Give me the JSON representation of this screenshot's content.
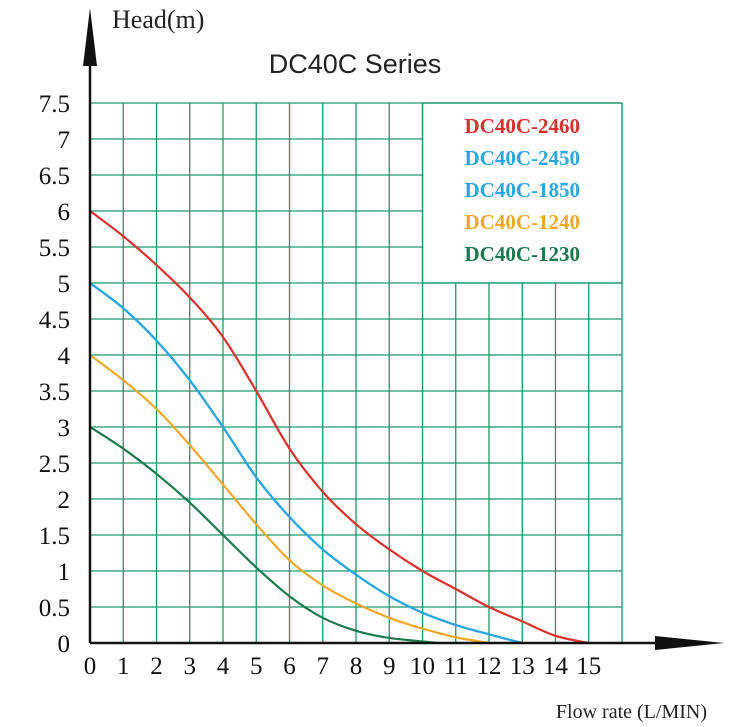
{
  "chart_data": {
    "type": "line",
    "title": "DC40C Series",
    "ylabel": "Head(m)",
    "xlabel": "Flow rate (L/MIN)",
    "xlim": [
      0,
      16
    ],
    "ylim": [
      0,
      7.5
    ],
    "x_ticks": [
      "0",
      "1",
      "2",
      "3",
      "4",
      "5",
      "6",
      "7",
      "8",
      "9",
      "10",
      "11",
      "12",
      "13",
      "14",
      "15"
    ],
    "y_ticks": [
      "0",
      "0.5",
      "1",
      "1.5",
      "2",
      "2.5",
      "3",
      "3.5",
      "4",
      "4.5",
      "5",
      "5.5",
      "6",
      "6.5",
      "7",
      "7.5"
    ],
    "grid": true,
    "legend_position": "top-right",
    "series": [
      {
        "name": "DC40C-2460",
        "color": "#d9312c",
        "points": [
          [
            0,
            6.0
          ],
          [
            1,
            5.65
          ],
          [
            2,
            5.25
          ],
          [
            3,
            4.8
          ],
          [
            4,
            4.25
          ],
          [
            5,
            3.5
          ],
          [
            6,
            2.7
          ],
          [
            7,
            2.1
          ],
          [
            8,
            1.65
          ],
          [
            9,
            1.3
          ],
          [
            10,
            1.0
          ],
          [
            11,
            0.75
          ],
          [
            12,
            0.5
          ],
          [
            13,
            0.3
          ],
          [
            14,
            0.1
          ],
          [
            15,
            0.0
          ]
        ]
      },
      {
        "name": "DC40C-2450",
        "color": "#2aa6e0",
        "points": [
          [
            0,
            5.0
          ],
          [
            1,
            4.65
          ],
          [
            2,
            4.2
          ],
          [
            3,
            3.65
          ],
          [
            4,
            3.0
          ],
          [
            5,
            2.3
          ],
          [
            6,
            1.75
          ],
          [
            7,
            1.3
          ],
          [
            8,
            0.95
          ],
          [
            9,
            0.65
          ],
          [
            10,
            0.42
          ],
          [
            11,
            0.25
          ],
          [
            12,
            0.12
          ],
          [
            13,
            0.0
          ]
        ]
      },
      {
        "name": "DC40C-1850",
        "color": "#2aa6e0",
        "points": [
          [
            0,
            5.0
          ],
          [
            1,
            4.65
          ],
          [
            2,
            4.2
          ],
          [
            3,
            3.65
          ],
          [
            4,
            3.0
          ],
          [
            5,
            2.3
          ],
          [
            6,
            1.75
          ],
          [
            7,
            1.3
          ],
          [
            8,
            0.95
          ],
          [
            9,
            0.65
          ],
          [
            10,
            0.42
          ],
          [
            11,
            0.25
          ],
          [
            12,
            0.12
          ],
          [
            13,
            0.0
          ]
        ]
      },
      {
        "name": "DC40C-1240",
        "color": "#f0a829",
        "points": [
          [
            0,
            4.0
          ],
          [
            1,
            3.65
          ],
          [
            2,
            3.25
          ],
          [
            3,
            2.75
          ],
          [
            4,
            2.2
          ],
          [
            5,
            1.65
          ],
          [
            6,
            1.15
          ],
          [
            7,
            0.8
          ],
          [
            8,
            0.55
          ],
          [
            9,
            0.35
          ],
          [
            10,
            0.2
          ],
          [
            11,
            0.08
          ],
          [
            12,
            0.0
          ]
        ]
      },
      {
        "name": "DC40C-1230",
        "color": "#1a7a4e",
        "points": [
          [
            0,
            3.0
          ],
          [
            1,
            2.7
          ],
          [
            2,
            2.35
          ],
          [
            3,
            1.95
          ],
          [
            4,
            1.5
          ],
          [
            5,
            1.05
          ],
          [
            6,
            0.65
          ],
          [
            7,
            0.35
          ],
          [
            8,
            0.17
          ],
          [
            9,
            0.07
          ],
          [
            10.5,
            0.0
          ]
        ]
      }
    ]
  }
}
